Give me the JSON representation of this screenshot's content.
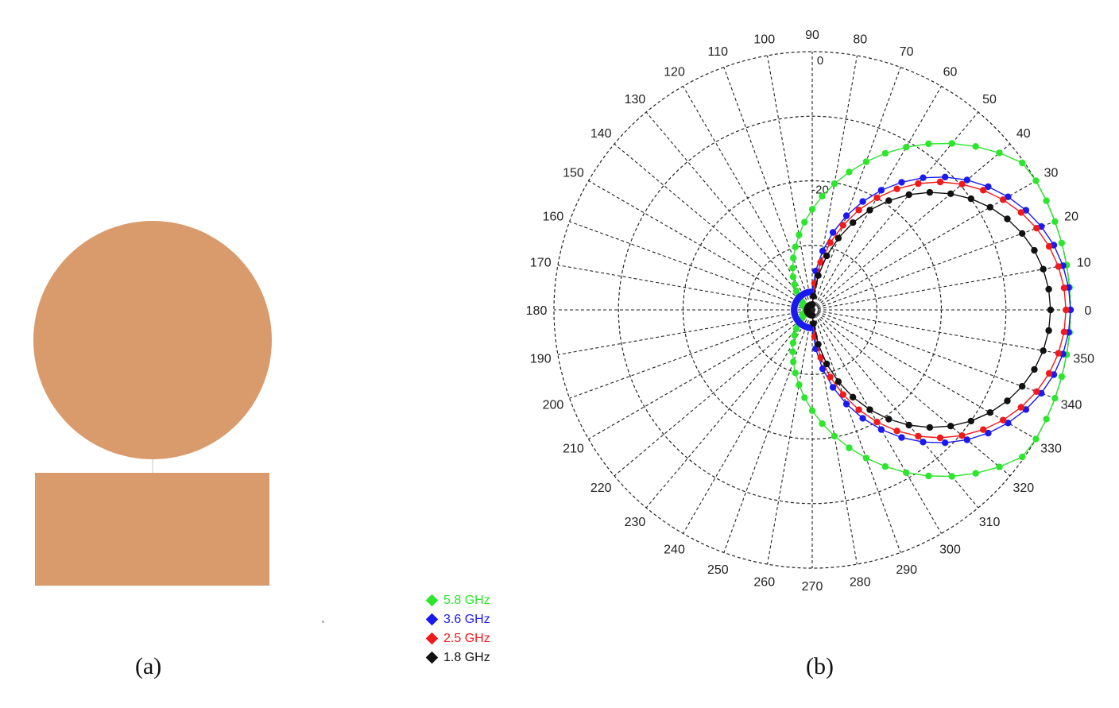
{
  "panel_a": {
    "label": "(a)",
    "fill_color": "#D99A6C",
    "shapes": [
      "circular-patch",
      "rectangular-ground-plane"
    ]
  },
  "panel_b": {
    "label": "(b)"
  },
  "chart_data": {
    "type": "polar-line",
    "title": "",
    "angle_unit": "degrees",
    "angle_ticks": [
      0,
      10,
      20,
      30,
      40,
      50,
      60,
      70,
      80,
      90,
      100,
      110,
      120,
      130,
      140,
      150,
      160,
      170,
      180,
      190,
      200,
      210,
      220,
      230,
      240,
      250,
      260,
      270,
      280,
      290,
      300,
      310,
      320,
      330,
      340,
      350
    ],
    "angle_tick_labels": [
      "0",
      "10",
      "20",
      "30",
      "40",
      "50",
      "60",
      "70",
      "80",
      "90",
      "100",
      "110",
      "120",
      "130",
      "140",
      "150",
      "160",
      "170",
      "180",
      "190",
      "200",
      "210",
      "220",
      "230",
      "240",
      "250",
      "260",
      "270",
      "280",
      "290",
      "300",
      "310",
      "320",
      "330",
      "340",
      "350"
    ],
    "radial_labels": [
      {
        "value": -20,
        "text": "-20"
      },
      {
        "value": 0,
        "text": "0"
      }
    ],
    "radial_range": [
      -40,
      0
    ],
    "radial_rings": [
      -10,
      -20,
      -30
    ],
    "grid": true,
    "grid_style": "dashed",
    "legend_position": "bottom-left",
    "series": [
      {
        "name": "5.8 GHz",
        "color": "#2DE52D",
        "model": {
          "peak": 0.7,
          "peak_angle": 0,
          "dir": 0.2,
          "bias": 0.5
        }
      },
      {
        "name": "3.6 GHz",
        "color": "#1A1AF0",
        "model": {
          "peak": 0.0,
          "peak_angle": 0,
          "dir": 0.56,
          "bias": 0.07
        }
      },
      {
        "name": "2.5 GHz",
        "color": "#F01A1A",
        "model": {
          "peak": 0.0,
          "peak_angle": 0,
          "dir": 0.55,
          "bias": 0.02
        }
      },
      {
        "name": "1.8 GHz",
        "color": "#111111",
        "model": {
          "peak": 0.0,
          "peak_angle": 0,
          "dir": 0.55,
          "bias": -0.03
        }
      }
    ]
  }
}
